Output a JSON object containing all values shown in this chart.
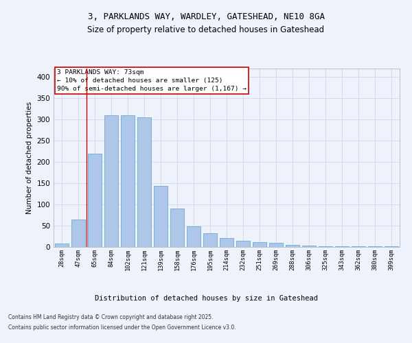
{
  "title1": "3, PARKLANDS WAY, WARDLEY, GATESHEAD, NE10 8GA",
  "title2": "Size of property relative to detached houses in Gateshead",
  "xlabel": "Distribution of detached houses by size in Gateshead",
  "ylabel": "Number of detached properties",
  "categories": [
    "28sqm",
    "47sqm",
    "65sqm",
    "84sqm",
    "102sqm",
    "121sqm",
    "139sqm",
    "158sqm",
    "176sqm",
    "195sqm",
    "214sqm",
    "232sqm",
    "251sqm",
    "269sqm",
    "288sqm",
    "306sqm",
    "325sqm",
    "343sqm",
    "362sqm",
    "380sqm",
    "399sqm"
  ],
  "values": [
    8,
    65,
    220,
    310,
    310,
    305,
    143,
    91,
    48,
    32,
    21,
    14,
    11,
    9,
    5,
    4,
    2,
    2,
    1,
    1,
    2
  ],
  "bar_color": "#aec6e8",
  "bar_edge_color": "#5a9fd4",
  "vline_x": 1.5,
  "vline_color": "#cc0000",
  "annotation_title": "3 PARKLANDS WAY: 73sqm",
  "annotation_line1": "← 10% of detached houses are smaller (125)",
  "annotation_line2": "90% of semi-detached houses are larger (1,167) →",
  "annotation_box_color": "#ffffff",
  "annotation_box_edge": "#cc0000",
  "footer1": "Contains HM Land Registry data © Crown copyright and database right 2025.",
  "footer2": "Contains public sector information licensed under the Open Government Licence v3.0.",
  "ylim": [
    0,
    420
  ],
  "yticks": [
    0,
    50,
    100,
    150,
    200,
    250,
    300,
    350,
    400
  ],
  "background_color": "#eef2fa",
  "plot_bg_color": "#eef2fa",
  "grid_color": "#c8d4e8"
}
